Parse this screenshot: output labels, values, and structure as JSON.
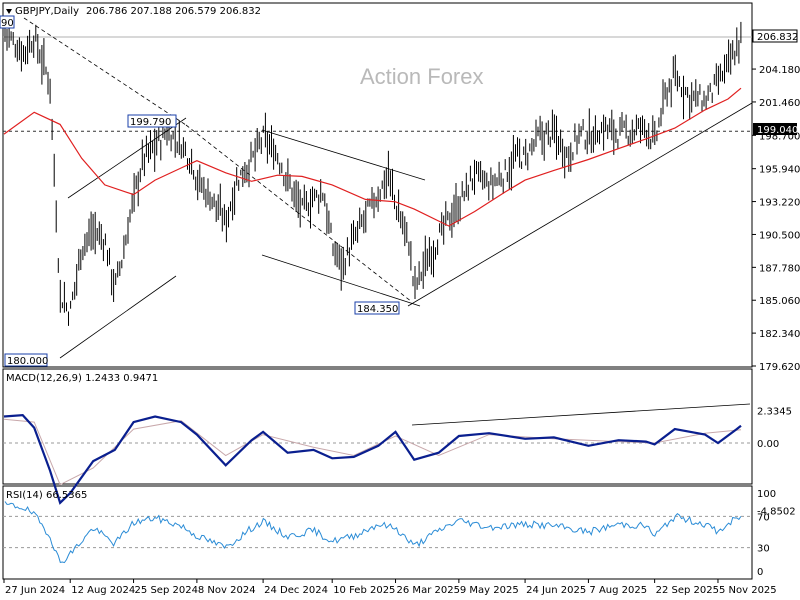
{
  "window": {
    "symbol_label": "GBPJPY,Daily",
    "ohlc": "206.786 207.188 206.579 206.832",
    "watermark": "Action Forex"
  },
  "chart_data": [
    {
      "type": "line",
      "panel": "price",
      "title": "GBPJPY,Daily",
      "style": "daily bar chart with moving average",
      "ylim": [
        179.62,
        208.0
      ],
      "y_ticks": [
        "206.832",
        "204.180",
        "201.460",
        "199.040",
        "198.700",
        "195.940",
        "193.220",
        "190.500",
        "187.780",
        "185.060",
        "182.340",
        "179.620"
      ],
      "x_ticks": [
        "27 Jun 2024",
        "12 Aug 2024",
        "25 Sep 2024",
        "8 Nov 2024",
        "24 Dec 2024",
        "10 Feb 2025",
        "26 Mar 2025",
        "9 May 2025",
        "24 Jun 2025",
        "7 Aug 2025",
        "22 Sep 2025",
        "5 Nov 2025"
      ],
      "series": [
        {
          "role": "price",
          "x": [
            "27 Jun 2024",
            "10 Jul 2024",
            "18 Jul 2024",
            "29 Jul 2024",
            "5 Aug 2024",
            "12 Aug 2024",
            "20 Aug 2024",
            "28 Aug 2024",
            "5 Sep 2024",
            "12 Sep 2024",
            "18 Sep 2024",
            "25 Sep 2024",
            "2 Oct 2024",
            "10 Oct 2024",
            "18 Oct 2024",
            "28 Oct 2024",
            "5 Nov 2024",
            "8 Nov 2024",
            "18 Nov 2024",
            "28 Nov 2024",
            "6 Dec 2024",
            "16 Dec 2024",
            "24 Dec 2024",
            "3 Jan 2025",
            "10 Jan 2025",
            "20 Jan 2025",
            "28 Jan 2025",
            "4 Feb 2025",
            "10 Feb 2025",
            "17 Feb 2025",
            "25 Feb 2025",
            "5 Mar 2025",
            "14 Mar 2025",
            "21 Mar 2025",
            "26 Mar 2025",
            "4 Apr 2025",
            "8 Apr 2025",
            "15 Apr 2025",
            "25 Apr 2025",
            "2 May 2025",
            "9 May 2025",
            "20 May 2025",
            "30 May 2025",
            "10 Jun 2025",
            "18 Jun 2025",
            "24 Jun 2025",
            "3 Jul 2025",
            "14 Jul 2025",
            "24 Jul 2025",
            "1 Aug 2025",
            "7 Aug 2025",
            "18 Aug 2025",
            "28 Aug 2025",
            "8 Sep 2025",
            "16 Sep 2025",
            "22 Sep 2025",
            "30 Sep 2025",
            "6 Oct 2025",
            "16 Oct 2025",
            "27 Oct 2025",
            "5 Nov 2025",
            "12 Nov 2025",
            "18 Nov 2025",
            "21 Nov 2025"
          ],
          "values": [
            207.3,
            205.5,
            206.8,
            203.0,
            185.5,
            184.0,
            189.5,
            190.8,
            190.0,
            186.0,
            189.0,
            193.5,
            196.8,
            197.8,
            199.0,
            198.0,
            196.5,
            195.0,
            193.5,
            191.5,
            195.0,
            196.6,
            198.5,
            197.0,
            195.0,
            192.5,
            193.5,
            194.0,
            189.5,
            188.0,
            190.0,
            192.0,
            193.8,
            195.5,
            193.0,
            190.0,
            186.0,
            188.0,
            190.2,
            191.8,
            193.0,
            195.5,
            194.5,
            195.5,
            197.0,
            196.8,
            198.5,
            198.9,
            197.0,
            198.9,
            198.5,
            199.3,
            198.8,
            199.1,
            199.4,
            198.0,
            202.3,
            203.5,
            202.0,
            201.5,
            203.0,
            204.5,
            205.8,
            206.832
          ]
        },
        {
          "role": "moving average (red)",
          "x": [
            "27 Jun 2024",
            "18 Jul 2024",
            "5 Aug 2024",
            "20 Aug 2024",
            "5 Sep 2024",
            "25 Sep 2024",
            "10 Oct 2024",
            "28 Oct 2024",
            "8 Nov 2024",
            "28 Nov 2024",
            "16 Dec 2024",
            "3 Jan 2025",
            "20 Jan 2025",
            "10 Feb 2025",
            "5 Mar 2025",
            "26 Mar 2025",
            "8 Apr 2025",
            "2 May 2025",
            "20 May 2025",
            "10 Jun 2025",
            "24 Jun 2025",
            "14 Jul 2025",
            "7 Aug 2025",
            "28 Aug 2025",
            "16 Sep 2025",
            "6 Oct 2025",
            "27 Oct 2025",
            "12 Nov 2025",
            "21 Nov 2025"
          ],
          "values": [
            198.8,
            200.6,
            199.6,
            196.8,
            194.6,
            193.8,
            195.0,
            196.0,
            196.6,
            195.6,
            194.9,
            195.4,
            195.3,
            194.6,
            193.4,
            193.2,
            192.6,
            191.2,
            192.4,
            194.0,
            195.0,
            195.8,
            196.7,
            197.6,
            198.4,
            199.3,
            200.8,
            201.7,
            202.6
          ]
        }
      ],
      "annotations": {
        "levels": [
          "199.790",
          "184.350",
          "180.000",
          "199.040",
          "90"
        ],
        "horizontal_lines": [
          206.832,
          199.04
        ]
      }
    },
    {
      "type": "line",
      "panel": "macd",
      "title": "MACD(12,26,9) 1.2433 0.9471",
      "ylim": [
        -4.85,
        2.3345
      ],
      "y_ticks": [
        "2.3345",
        "0.00",
        "-4.8502"
      ],
      "series": [
        {
          "role": "macd",
          "x": [
            "27 Jun 2024",
            "10 Jul 2024",
            "18 Jul 2024",
            "29 Jul 2024",
            "5 Aug 2024",
            "12 Aug 2024",
            "28 Aug 2024",
            "12 Sep 2024",
            "25 Sep 2024",
            "10 Oct 2024",
            "28 Oct 2024",
            "8 Nov 2024",
            "28 Nov 2024",
            "16 Dec 2024",
            "24 Dec 2024",
            "10 Jan 2025",
            "28 Jan 2025",
            "10 Feb 2025",
            "25 Feb 2025",
            "14 Mar 2025",
            "26 Mar 2025",
            "8 Apr 2025",
            "25 Apr 2025",
            "9 May 2025",
            "30 May 2025",
            "24 Jun 2025",
            "14 Jul 2025",
            "7 Aug 2025",
            "28 Aug 2025",
            "16 Sep 2025",
            "22 Sep 2025",
            "6 Oct 2025",
            "27 Oct 2025",
            "5 Nov 2025",
            "18 Nov 2025",
            "21 Nov 2025"
          ],
          "values": [
            1.9,
            2.0,
            1.1,
            -2.0,
            -4.3,
            -3.6,
            -1.3,
            -0.5,
            1.5,
            1.9,
            1.5,
            0.6,
            -1.6,
            0.2,
            0.8,
            -0.7,
            -0.5,
            -1.1,
            -1.0,
            -0.2,
            0.8,
            -1.2,
            -0.7,
            0.5,
            0.7,
            0.3,
            0.4,
            -0.2,
            0.2,
            0.1,
            -0.1,
            1.0,
            0.6,
            0.0,
            1.0,
            1.2433
          ]
        },
        {
          "role": "signal",
          "x": [
            "27 Jun 2024",
            "18 Jul 2024",
            "5 Aug 2024",
            "28 Aug 2024",
            "25 Sep 2024",
            "28 Oct 2024",
            "28 Nov 2024",
            "24 Dec 2024",
            "28 Jan 2025",
            "25 Feb 2025",
            "26 Mar 2025",
            "25 Apr 2025",
            "30 May 2025",
            "14 Jul 2025",
            "28 Aug 2025",
            "22 Sep 2025",
            "27 Oct 2025",
            "21 Nov 2025"
          ],
          "values": [
            1.7,
            1.5,
            -3.0,
            -1.8,
            1.0,
            1.6,
            -0.9,
            0.6,
            -0.3,
            -0.9,
            0.5,
            -0.9,
            0.6,
            0.3,
            0.1,
            0.0,
            0.7,
            0.9471
          ]
        }
      ],
      "annotations": {
        "zero_line": 0
      }
    },
    {
      "type": "line",
      "panel": "rsi",
      "title": "RSI(14) 66.5365",
      "ylim": [
        0,
        100
      ],
      "y_ticks": [
        "100",
        "70",
        "30",
        "0"
      ],
      "series": [
        {
          "role": "rsi",
          "x": [
            "27 Jun 2024",
            "10 Jul 2024",
            "18 Jul 2024",
            "29 Jul 2024",
            "5 Aug 2024",
            "12 Aug 2024",
            "28 Aug 2024",
            "12 Sep 2024",
            "25 Sep 2024",
            "10 Oct 2024",
            "28 Oct 2024",
            "8 Nov 2024",
            "28 Nov 2024",
            "16 Dec 2024",
            "24 Dec 2024",
            "10 Jan 2025",
            "28 Jan 2025",
            "10 Feb 2025",
            "25 Feb 2025",
            "14 Mar 2025",
            "26 Mar 2025",
            "8 Apr 2025",
            "25 Apr 2025",
            "9 May 2025",
            "30 May 2025",
            "24 Jun 2025",
            "14 Jul 2025",
            "7 Aug 2025",
            "28 Aug 2025",
            "16 Sep 2025",
            "22 Sep 2025",
            "6 Oct 2025",
            "27 Oct 2025",
            "5 Nov 2025",
            "18 Nov 2025",
            "21 Nov 2025"
          ],
          "values": [
            85,
            82,
            72,
            45,
            10,
            22,
            55,
            35,
            62,
            68,
            58,
            45,
            30,
            55,
            63,
            44,
            52,
            38,
            45,
            60,
            55,
            32,
            52,
            65,
            56,
            60,
            58,
            50,
            60,
            58,
            45,
            70,
            60,
            50,
            68,
            66.5365
          ]
        }
      ],
      "annotations": {
        "levels": [
          70,
          30
        ]
      }
    }
  ]
}
